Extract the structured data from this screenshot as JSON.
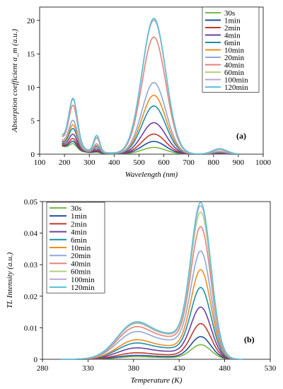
{
  "chart_data": [
    {
      "type": "line",
      "panel_label": "(a)",
      "xlabel": "Wavelength (nm)",
      "ylabel": "Absorption coefficient α_m (a.u.)",
      "xlim": [
        100,
        1000
      ],
      "ylim": [
        0,
        22
      ],
      "xticks": [
        100,
        200,
        300,
        400,
        500,
        600,
        700,
        800,
        900,
        1000
      ],
      "yticks": [
        0,
        5,
        10,
        15,
        20
      ],
      "x_range_plotted": [
        190,
        900
      ],
      "legend_position": "top-right",
      "grid": false,
      "features": [
        {
          "center": 235,
          "width": 18,
          "relative": 0.27
        },
        {
          "center": 330,
          "width": 12,
          "relative": 0.12
        },
        {
          "center": 560,
          "width": 48,
          "relative": 1.0
        },
        {
          "center": 825,
          "width": 30,
          "relative": 0.04
        }
      ],
      "series": [
        {
          "name": "30s",
          "color": "#7ab648",
          "peak": 1.0,
          "base": 2.2
        },
        {
          "name": "1min",
          "color": "#1f4e9c",
          "peak": 1.9,
          "base": 2.4
        },
        {
          "name": "2min",
          "color": "#c0392b",
          "peak": 3.0,
          "base": 2.6
        },
        {
          "name": "4min",
          "color": "#6b3fa0",
          "peak": 4.7,
          "base": 2.9
        },
        {
          "name": "6min",
          "color": "#1b8fa8",
          "peak": 7.2,
          "base": 3.2
        },
        {
          "name": "10min",
          "color": "#f08c1f",
          "peak": 8.8,
          "base": 3.4
        },
        {
          "name": "20min",
          "color": "#8ea9d6",
          "peak": 10.7,
          "base": 3.7
        },
        {
          "name": "40min",
          "color": "#e8807b",
          "peak": 17.5,
          "base": 4.4
        },
        {
          "name": "60min",
          "color": "#b3d17e",
          "peak": 20.1,
          "base": 4.7
        },
        {
          "name": "100min",
          "color": "#b9a7d3",
          "peak": 20.0,
          "base": 4.8
        },
        {
          "name": "120min",
          "color": "#5ec2d6",
          "peak": 20.3,
          "base": 4.9
        }
      ]
    },
    {
      "type": "line",
      "panel_label": "(b)",
      "xlabel": "Temperature (K)",
      "ylabel": "TL Intensity (a.u.)",
      "xlim": [
        280,
        530
      ],
      "ylim": [
        0,
        0.05
      ],
      "xticks": [
        280,
        330,
        380,
        430,
        480,
        530
      ],
      "yticks": [
        0,
        0.01,
        0.02,
        0.03,
        0.04,
        0.05
      ],
      "x_range_plotted": [
        300,
        500
      ],
      "legend_position": "top-left",
      "grid": false,
      "series": [
        {
          "name": "30s",
          "color": "#7ab648",
          "peak": 0.0045,
          "shoulder": 0.0008
        },
        {
          "name": "1min",
          "color": "#1f4e9c",
          "peak": 0.007,
          "shoulder": 0.0012
        },
        {
          "name": "2min",
          "color": "#c0392b",
          "peak": 0.011,
          "shoulder": 0.002
        },
        {
          "name": "4min",
          "color": "#6b3fa0",
          "peak": 0.016,
          "shoulder": 0.0035
        },
        {
          "name": "6min",
          "color": "#1b8fa8",
          "peak": 0.022,
          "shoulder": 0.005
        },
        {
          "name": "10min",
          "color": "#f08c1f",
          "peak": 0.0275,
          "shoulder": 0.006
        },
        {
          "name": "20min",
          "color": "#8ea9d6",
          "peak": 0.033,
          "shoulder": 0.0085
        },
        {
          "name": "40min",
          "color": "#e8807b",
          "peak": 0.0405,
          "shoulder": 0.01
        },
        {
          "name": "60min",
          "color": "#b3d17e",
          "peak": 0.045,
          "shoulder": 0.011
        },
        {
          "name": "100min",
          "color": "#b9a7d3",
          "peak": 0.047,
          "shoulder": 0.0112
        },
        {
          "name": "120min",
          "color": "#5ec2d6",
          "peak": 0.048,
          "shoulder": 0.0115
        }
      ]
    }
  ]
}
